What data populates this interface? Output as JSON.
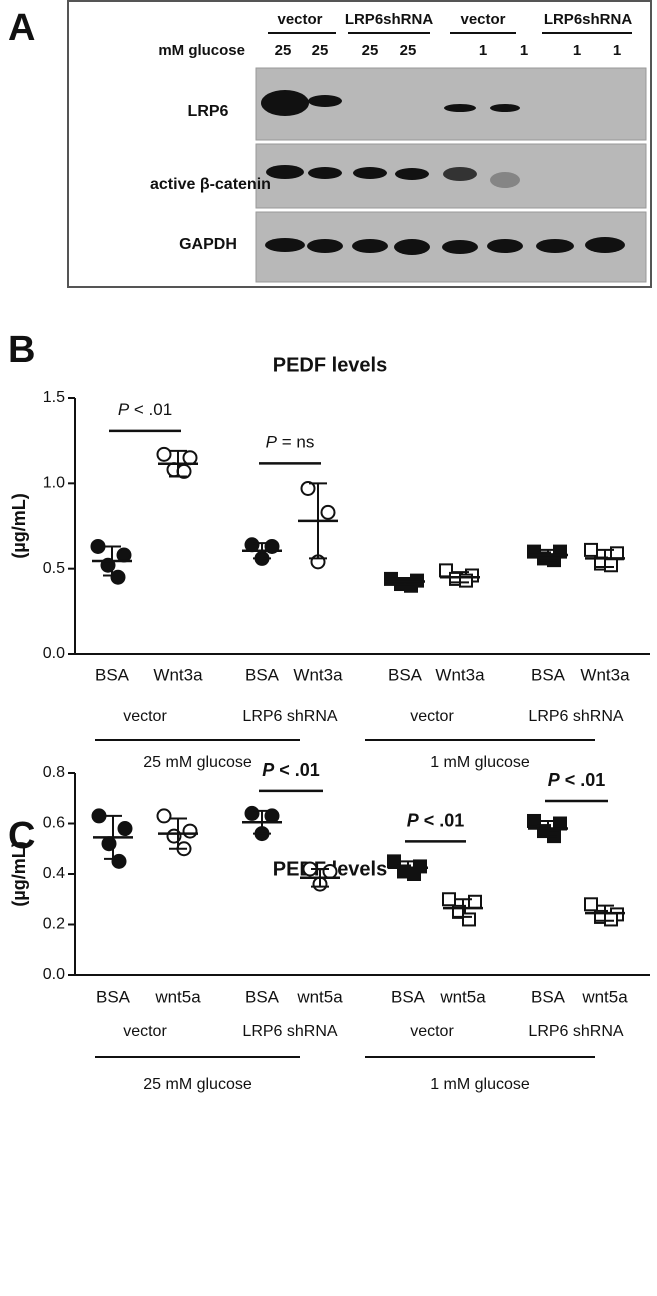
{
  "panel_a": {
    "letter": "A",
    "groups": [
      "vector",
      "LRP6shRNA",
      "vector",
      "LRP6shRNA"
    ],
    "glucose_label": "mM glucose",
    "lanes": [
      "25",
      "25",
      "25",
      "25",
      "1",
      "1",
      "1",
      "1"
    ],
    "rows": [
      "LRP6",
      "active β-catenin",
      "GAPDH"
    ]
  },
  "chart_data": [
    {
      "type": "scatter",
      "letter": "B",
      "title": "PEDF levels",
      "y_label": "(µg/mL)",
      "ylim": [
        0,
        1.5
      ],
      "yticks": [
        {
          "value": 0,
          "label": "0.0"
        },
        {
          "value": 0.5,
          "label": "0.5"
        },
        {
          "value": 1,
          "label": "1.0"
        },
        {
          "value": 1.5,
          "label": "1.5"
        }
      ],
      "glucose": [
        {
          "label": "25 mM glucose",
          "conditions": [
            {
              "label": "vector",
              "annotation": {
                "italic": "P",
                "text": "< .01"
              },
              "groups": [
                {
                  "category": "BSA",
                  "marker": "circle",
                  "filled": true,
                  "values": [
                    0.63,
                    0.58,
                    0.52,
                    0.45
                  ],
                  "mean": 0.545,
                  "sd": 0.085
                },
                {
                  "category": "Wnt3a",
                  "marker": "circle",
                  "filled": false,
                  "values": [
                    1.17,
                    1.15,
                    1.08,
                    1.07
                  ],
                  "mean": 1.115,
                  "sd": 0.075
                }
              ]
            },
            {
              "label": "LRP6 shRNA",
              "annotation": {
                "italic": "P",
                "text": "= ns"
              },
              "groups": [
                {
                  "category": "BSA",
                  "marker": "circle",
                  "filled": true,
                  "values": [
                    0.64,
                    0.63,
                    0.56
                  ],
                  "mean": 0.605,
                  "sd": 0.045
                },
                {
                  "category": "Wnt3a",
                  "marker": "circle",
                  "filled": false,
                  "values": [
                    0.97,
                    0.83,
                    0.54
                  ],
                  "mean": 0.78,
                  "sd": 0.22
                }
              ]
            }
          ]
        },
        {
          "label": "1 mM glucose",
          "conditions": [
            {
              "label": "vector",
              "groups": [
                {
                  "category": "BSA",
                  "marker": "square",
                  "filled": true,
                  "values": [
                    0.44,
                    0.43,
                    0.41,
                    0.4
                  ],
                  "mean": 0.425,
                  "sd": 0.02
                },
                {
                  "category": "Wnt3a",
                  "marker": "square",
                  "filled": false,
                  "values": [
                    0.49,
                    0.46,
                    0.44,
                    0.43
                  ],
                  "mean": 0.45,
                  "sd": 0.03
                }
              ]
            },
            {
              "label": "LRP6 shRNA",
              "groups": [
                {
                  "category": "BSA",
                  "marker": "square",
                  "filled": true,
                  "values": [
                    0.6,
                    0.6,
                    0.56,
                    0.55
                  ],
                  "mean": 0.58,
                  "sd": 0.03
                },
                {
                  "category": "Wnt3a",
                  "marker": "square",
                  "filled": false,
                  "values": [
                    0.61,
                    0.59,
                    0.53,
                    0.52
                  ],
                  "mean": 0.56,
                  "sd": 0.05
                }
              ]
            }
          ]
        }
      ]
    },
    {
      "type": "scatter",
      "letter": "C",
      "title": "PEDF levels",
      "y_label": "(µg/mL)",
      "ylim": [
        0,
        0.8
      ],
      "yticks": [
        {
          "value": 0,
          "label": "0.0"
        },
        {
          "value": 0.2,
          "label": "0.2"
        },
        {
          "value": 0.4,
          "label": "0.4"
        },
        {
          "value": 0.6,
          "label": "0.6"
        },
        {
          "value": 0.8,
          "label": "0.8"
        }
      ],
      "glucose": [
        {
          "label": "25 mM glucose",
          "conditions": [
            {
              "label": "vector",
              "groups": [
                {
                  "category": "BSA",
                  "marker": "circle",
                  "filled": true,
                  "values": [
                    0.63,
                    0.58,
                    0.52,
                    0.45
                  ],
                  "mean": 0.545,
                  "sd": 0.085
                },
                {
                  "category": "wnt5a",
                  "marker": "circle",
                  "filled": false,
                  "values": [
                    0.63,
                    0.57,
                    0.55,
                    0.5
                  ],
                  "mean": 0.56,
                  "sd": 0.06
                }
              ]
            },
            {
              "label": "LRP6 shRNA",
              "annotation": {
                "italic": "P",
                "text": "< .01"
              },
              "groups": [
                {
                  "category": "BSA",
                  "marker": "circle",
                  "filled": true,
                  "values": [
                    0.64,
                    0.63,
                    0.56
                  ],
                  "mean": 0.605,
                  "sd": 0.045
                },
                {
                  "category": "wnt5a",
                  "marker": "circle",
                  "filled": false,
                  "values": [
                    0.42,
                    0.41,
                    0.36
                  ],
                  "mean": 0.385,
                  "sd": 0.035
                }
              ]
            }
          ]
        },
        {
          "label": "1 mM glucose",
          "conditions": [
            {
              "label": "vector",
              "annotation": {
                "italic": "P",
                "text": "< .01"
              },
              "groups": [
                {
                  "category": "BSA",
                  "marker": "square",
                  "filled": true,
                  "values": [
                    0.45,
                    0.43,
                    0.41,
                    0.4
                  ],
                  "mean": 0.425,
                  "sd": 0.025
                },
                {
                  "category": "wnt5a",
                  "marker": "square",
                  "filled": false,
                  "values": [
                    0.3,
                    0.29,
                    0.25,
                    0.22
                  ],
                  "mean": 0.265,
                  "sd": 0.035
                }
              ]
            },
            {
              "label": "LRP6 shRNA",
              "annotation": {
                "italic": "P",
                "text": "< .01"
              },
              "groups": [
                {
                  "category": "BSA",
                  "marker": "square",
                  "filled": true,
                  "values": [
                    0.61,
                    0.6,
                    0.57,
                    0.55
                  ],
                  "mean": 0.58,
                  "sd": 0.03
                },
                {
                  "category": "wnt5a",
                  "marker": "square",
                  "filled": false,
                  "values": [
                    0.28,
                    0.24,
                    0.23,
                    0.22
                  ],
                  "mean": 0.245,
                  "sd": 0.03
                }
              ]
            }
          ]
        }
      ]
    }
  ]
}
